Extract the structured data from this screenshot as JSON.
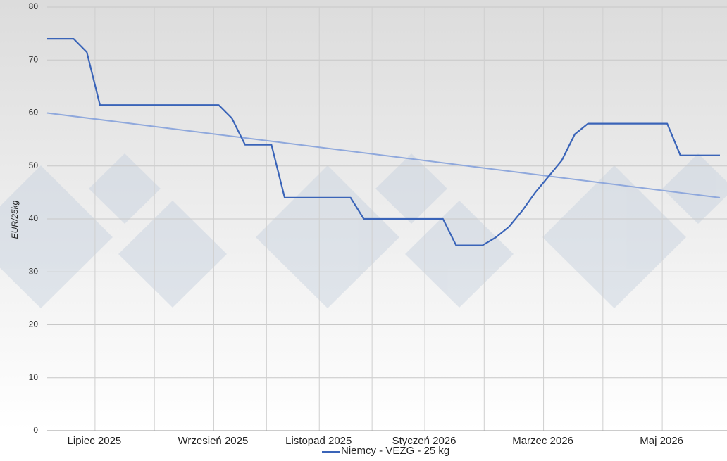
{
  "chart_data": {
    "type": "line",
    "y_label": "EUR/25kg",
    "categories": [
      null,
      null,
      null,
      null,
      "Lipiec 2025",
      null,
      null,
      null,
      null,
      null,
      null,
      null,
      null,
      "Wrzesień 2025",
      null,
      null,
      null,
      null,
      null,
      null,
      null,
      "Listopad 2025",
      null,
      null,
      null,
      null,
      null,
      null,
      null,
      "Styczeń 2026",
      null,
      null,
      null,
      null,
      null,
      null,
      null,
      null,
      "Marzec 2026",
      null,
      null,
      null,
      null,
      null,
      null,
      null,
      null,
      "Maj 2026",
      null,
      null,
      null,
      null
    ],
    "series": [
      {
        "name": "Niemcy - VEZG - 25 kg",
        "color": "#3a64b8",
        "values": [
          74,
          74,
          74,
          71.5,
          61.5,
          61.5,
          61.5,
          61.5,
          61.5,
          61.5,
          61.5,
          61.5,
          61.5,
          61.5,
          59,
          54,
          54,
          54,
          44,
          44,
          44,
          44,
          44,
          44,
          40,
          40,
          40,
          40,
          40,
          40,
          40,
          35,
          35,
          35,
          36.5,
          38.5,
          41.5,
          45,
          48,
          51,
          56,
          58,
          58,
          58,
          58,
          58,
          58,
          58,
          52,
          52,
          52,
          52
        ]
      }
    ],
    "trendline": {
      "color": "#8fa8dc",
      "values": [
        60,
        44
      ]
    },
    "ylim": [
      0,
      80
    ],
    "yticks": [
      0,
      10,
      20,
      30,
      40,
      50,
      60,
      70,
      80
    ],
    "grid": true
  }
}
